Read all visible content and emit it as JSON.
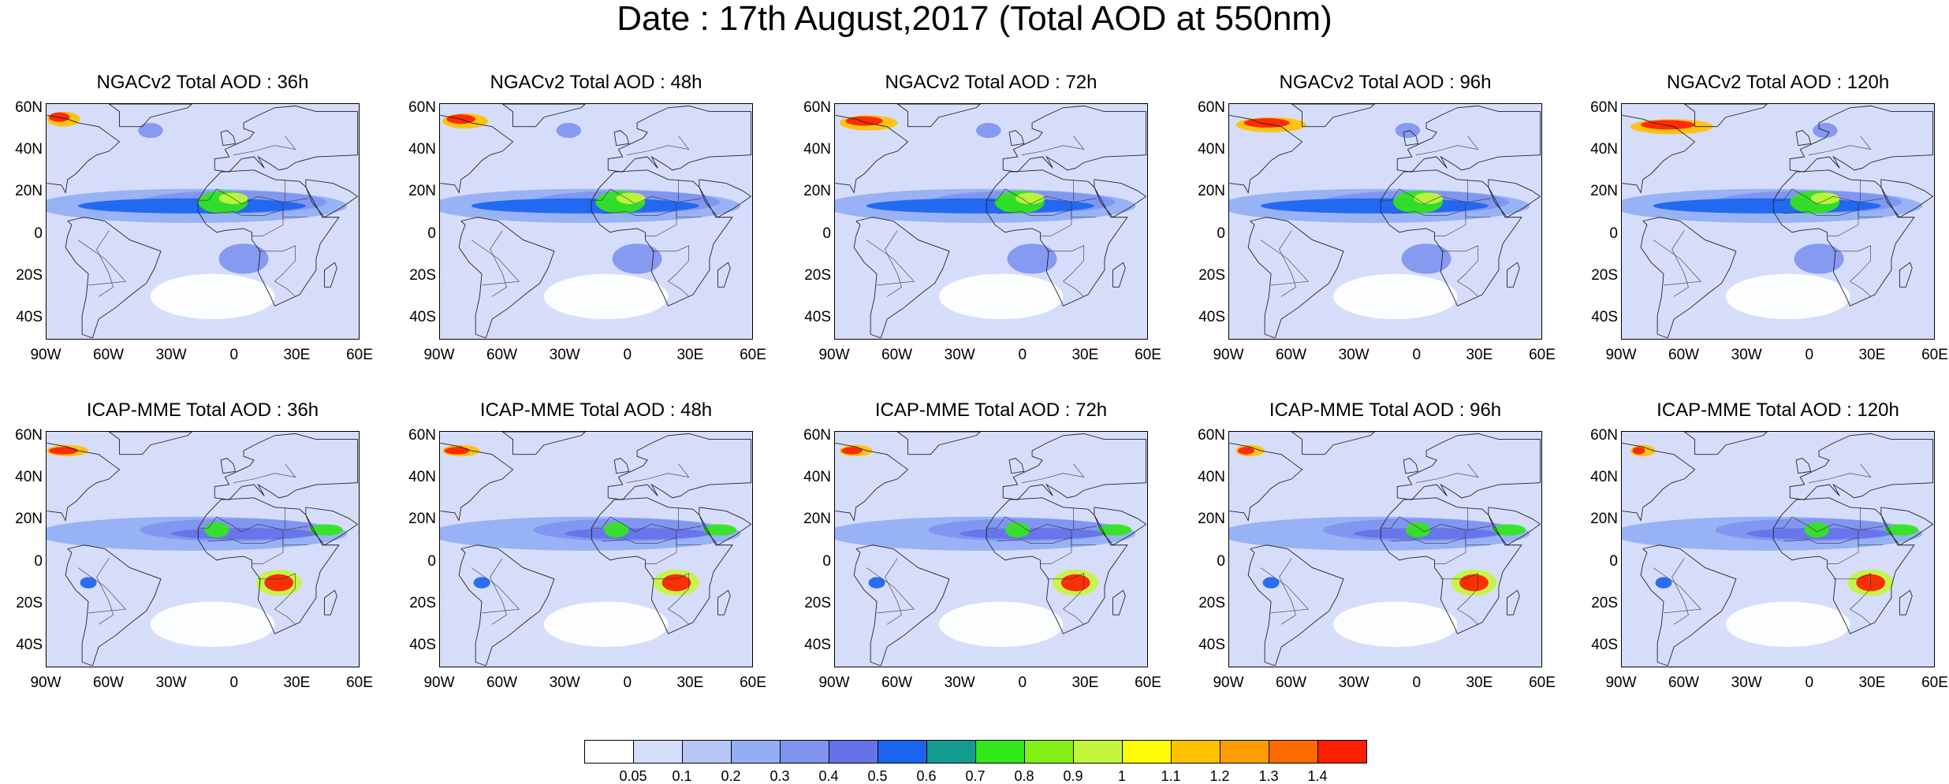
{
  "title": "Date : 17th August,2017 (Total AOD at 550nm)",
  "panels": [
    {
      "row": 0,
      "col": 0,
      "title": "NGACv2 Total AOD : 36h",
      "model": "NGACv2",
      "lead": "36h"
    },
    {
      "row": 0,
      "col": 1,
      "title": "NGACv2 Total AOD : 48h",
      "model": "NGACv2",
      "lead": "48h"
    },
    {
      "row": 0,
      "col": 2,
      "title": "NGACv2 Total AOD : 72h",
      "model": "NGACv2",
      "lead": "72h"
    },
    {
      "row": 0,
      "col": 3,
      "title": "NGACv2 Total AOD : 96h",
      "model": "NGACv2",
      "lead": "96h"
    },
    {
      "row": 0,
      "col": 4,
      "title": "NGACv2 Total AOD : 120h",
      "model": "NGACv2",
      "lead": "120h"
    },
    {
      "row": 1,
      "col": 0,
      "title": "ICAP-MME Total AOD : 36h",
      "model": "ICAP-MME",
      "lead": "36h"
    },
    {
      "row": 1,
      "col": 1,
      "title": "ICAP-MME Total AOD : 48h",
      "model": "ICAP-MME",
      "lead": "48h"
    },
    {
      "row": 1,
      "col": 2,
      "title": "ICAP-MME Total AOD : 72h",
      "model": "ICAP-MME",
      "lead": "72h"
    },
    {
      "row": 1,
      "col": 3,
      "title": "ICAP-MME Total AOD : 96h",
      "model": "ICAP-MME",
      "lead": "96h"
    },
    {
      "row": 1,
      "col": 4,
      "title": "ICAP-MME Total AOD : 120h",
      "model": "ICAP-MME",
      "lead": "120h"
    }
  ],
  "lat_ticks": [
    "60N",
    "40N",
    "20N",
    "0",
    "20S",
    "40S"
  ],
  "lon_ticks": [
    "90W",
    "60W",
    "30W",
    "0",
    "30E",
    "60E"
  ],
  "colorbar": {
    "labels": [
      "0.05",
      "0.1",
      "0.2",
      "0.3",
      "0.4",
      "0.5",
      "0.6",
      "0.7",
      "0.8",
      "0.9",
      "1",
      "1.1",
      "1.2",
      "1.3",
      "1.4"
    ],
    "colors": [
      "#ffffff",
      "#d6ddfa",
      "#b9c7f7",
      "#93aef5",
      "#7f94f0",
      "#6672ea",
      "#1a64f0",
      "#119c8f",
      "#33e61a",
      "#82f014",
      "#c4f53d",
      "#ffff00",
      "#ffc000",
      "#ff9d00",
      "#ff6a00",
      "#ff1e00"
    ]
  }
}
